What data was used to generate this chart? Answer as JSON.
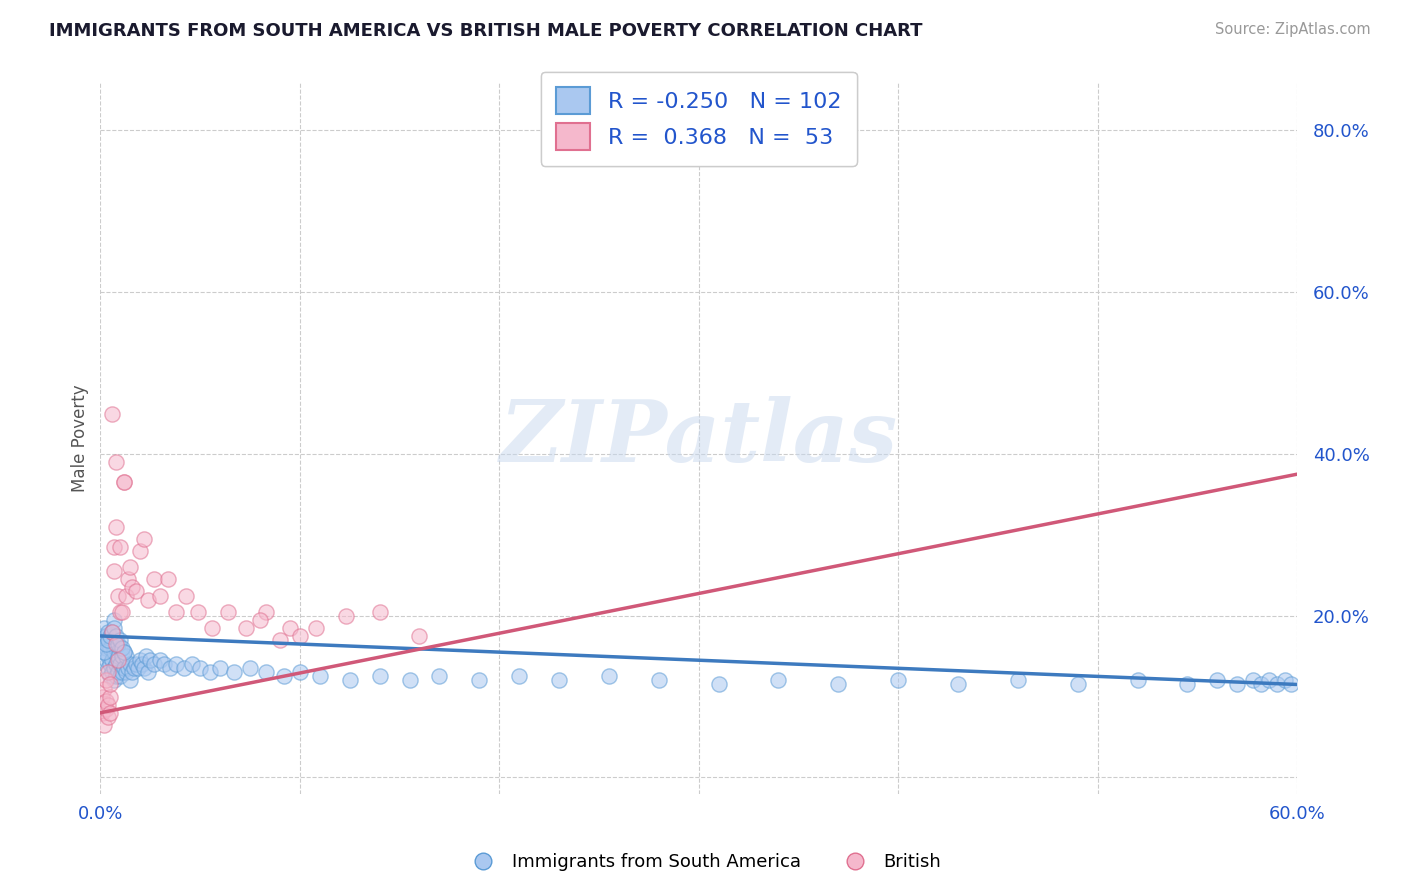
{
  "title": "IMMIGRANTS FROM SOUTH AMERICA VS BRITISH MALE POVERTY CORRELATION CHART",
  "source": "Source: ZipAtlas.com",
  "ylabel": "Male Poverty",
  "series": [
    {
      "name": "Immigrants from South America",
      "R": -0.25,
      "N": 102,
      "color_scatter": "#aac8f0",
      "color_edge": "#5b9bd5",
      "color_line": "#3d7abf"
    },
    {
      "name": "British",
      "R": 0.368,
      "N": 53,
      "color_scatter": "#f5b8cc",
      "color_edge": "#e07090",
      "color_line": "#d05878"
    }
  ],
  "xlim": [
    0.0,
    0.6
  ],
  "ylim": [
    -0.02,
    0.86
  ],
  "yticks": [
    0.0,
    0.2,
    0.4,
    0.6,
    0.8
  ],
  "ytick_labels": [
    "",
    "20.0%",
    "40.0%",
    "60.0%",
    "80.0%"
  ],
  "xticks": [
    0.0,
    0.1,
    0.2,
    0.3,
    0.4,
    0.5,
    0.6
  ],
  "xtick_labels": [
    "0.0%",
    "",
    "",
    "",
    "",
    "",
    "60.0%"
  ],
  "watermark": "ZIPatlas",
  "background_color": "#ffffff",
  "grid_color": "#cccccc",
  "blue_trend_start": 0.175,
  "blue_trend_end": 0.115,
  "pink_trend_start": 0.08,
  "pink_trend_end": 0.375,
  "blue_x": [
    0.001,
    0.001,
    0.002,
    0.002,
    0.002,
    0.003,
    0.003,
    0.003,
    0.004,
    0.004,
    0.004,
    0.004,
    0.005,
    0.005,
    0.005,
    0.006,
    0.006,
    0.006,
    0.007,
    0.007,
    0.007,
    0.007,
    0.008,
    0.008,
    0.008,
    0.009,
    0.009,
    0.01,
    0.01,
    0.01,
    0.011,
    0.011,
    0.012,
    0.012,
    0.013,
    0.013,
    0.014,
    0.015,
    0.015,
    0.016,
    0.017,
    0.018,
    0.019,
    0.02,
    0.021,
    0.022,
    0.023,
    0.024,
    0.025,
    0.027,
    0.03,
    0.032,
    0.035,
    0.038,
    0.042,
    0.046,
    0.05,
    0.055,
    0.06,
    0.067,
    0.075,
    0.083,
    0.092,
    0.1,
    0.11,
    0.125,
    0.14,
    0.155,
    0.17,
    0.19,
    0.21,
    0.23,
    0.255,
    0.28,
    0.31,
    0.34,
    0.37,
    0.4,
    0.43,
    0.46,
    0.49,
    0.52,
    0.545,
    0.56,
    0.57,
    0.578,
    0.582,
    0.586,
    0.59,
    0.594,
    0.597,
    0.002,
    0.003,
    0.004,
    0.005,
    0.006,
    0.007,
    0.008,
    0.009,
    0.01,
    0.011,
    0.012
  ],
  "blue_y": [
    0.175,
    0.165,
    0.155,
    0.17,
    0.185,
    0.145,
    0.16,
    0.175,
    0.135,
    0.15,
    0.165,
    0.18,
    0.125,
    0.14,
    0.16,
    0.13,
    0.145,
    0.165,
    0.12,
    0.135,
    0.155,
    0.195,
    0.125,
    0.14,
    0.16,
    0.13,
    0.15,
    0.125,
    0.14,
    0.16,
    0.13,
    0.15,
    0.135,
    0.155,
    0.13,
    0.15,
    0.135,
    0.12,
    0.14,
    0.13,
    0.135,
    0.14,
    0.135,
    0.145,
    0.14,
    0.135,
    0.15,
    0.13,
    0.145,
    0.14,
    0.145,
    0.14,
    0.135,
    0.14,
    0.135,
    0.14,
    0.135,
    0.13,
    0.135,
    0.13,
    0.135,
    0.13,
    0.125,
    0.13,
    0.125,
    0.12,
    0.125,
    0.12,
    0.125,
    0.12,
    0.125,
    0.12,
    0.125,
    0.12,
    0.115,
    0.12,
    0.115,
    0.12,
    0.115,
    0.12,
    0.115,
    0.12,
    0.115,
    0.12,
    0.115,
    0.12,
    0.115,
    0.12,
    0.115,
    0.12,
    0.115,
    0.155,
    0.165,
    0.17,
    0.175,
    0.18,
    0.185,
    0.175,
    0.165,
    0.17,
    0.16,
    0.155
  ],
  "pink_x": [
    0.001,
    0.001,
    0.002,
    0.002,
    0.003,
    0.003,
    0.003,
    0.004,
    0.004,
    0.004,
    0.005,
    0.005,
    0.005,
    0.006,
    0.006,
    0.007,
    0.007,
    0.008,
    0.008,
    0.008,
    0.009,
    0.009,
    0.01,
    0.01,
    0.011,
    0.012,
    0.012,
    0.013,
    0.014,
    0.015,
    0.016,
    0.018,
    0.02,
    0.022,
    0.024,
    0.027,
    0.03,
    0.034,
    0.038,
    0.043,
    0.049,
    0.056,
    0.064,
    0.073,
    0.083,
    0.095,
    0.108,
    0.123,
    0.14,
    0.16,
    0.08,
    0.09,
    0.1
  ],
  "pink_y": [
    0.1,
    0.08,
    0.11,
    0.065,
    0.085,
    0.095,
    0.12,
    0.075,
    0.09,
    0.13,
    0.08,
    0.1,
    0.115,
    0.45,
    0.18,
    0.255,
    0.285,
    0.31,
    0.39,
    0.165,
    0.145,
    0.225,
    0.205,
    0.285,
    0.205,
    0.365,
    0.365,
    0.225,
    0.245,
    0.26,
    0.235,
    0.23,
    0.28,
    0.295,
    0.22,
    0.245,
    0.225,
    0.245,
    0.205,
    0.225,
    0.205,
    0.185,
    0.205,
    0.185,
    0.205,
    0.185,
    0.185,
    0.2,
    0.205,
    0.175,
    0.195,
    0.17,
    0.175
  ]
}
